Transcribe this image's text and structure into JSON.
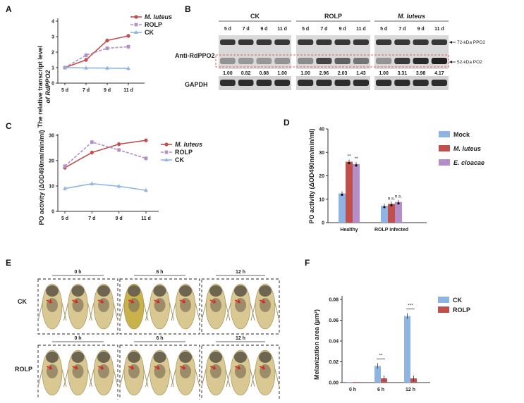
{
  "panels": {
    "A": {
      "letter": "A",
      "ylabel_line1": "The relative transcript level",
      "ylabel_line2": "of RdPPO2",
      "legend": [
        "M. luteus",
        "ROLP",
        "CK"
      ],
      "chart_data": {
        "type": "line",
        "categories": [
          "5 d",
          "7 d",
          "9 d",
          "11 d"
        ],
        "ylim": [
          0,
          4
        ],
        "yticks": [
          "0",
          "1",
          "2",
          "3",
          "4"
        ],
        "series": [
          {
            "name": "M. luteus",
            "values": [
              1.0,
              1.5,
              2.75,
              3.05
            ],
            "color": "#c0504d"
          },
          {
            "name": "ROLP",
            "values": [
              1.0,
              1.8,
              2.25,
              2.35
            ],
            "color": "#b48ec6"
          },
          {
            "name": "CK",
            "values": [
              1.0,
              0.98,
              0.97,
              0.95
            ],
            "color": "#8db4e2"
          }
        ]
      }
    },
    "B": {
      "letter": "B",
      "groups": [
        "CK",
        "ROLP",
        "M. luteus"
      ],
      "days": [
        "5 d",
        "7 d",
        "9 d",
        "11 d"
      ],
      "row_label_antibody": "Anti-RdPPO2",
      "row_label_loading": "GAPDH",
      "band_upper": "72-kDa PPO2",
      "band_lower": "52-kDa PO2",
      "values": {
        "CK": [
          "1.00",
          "0.82",
          "0.88",
          "1.00"
        ],
        "ROLP": [
          "1.00",
          "2.96",
          "2.03",
          "1.43"
        ],
        "M. luteus": [
          "1.00",
          "3.31",
          "3.98",
          "4.17"
        ]
      }
    },
    "C": {
      "letter": "C",
      "ylabel": "PO activity (ΔOD490nm/min/ml)",
      "legend": [
        "M. luteus",
        "ROLP",
        "CK"
      ],
      "chart_data": {
        "type": "line",
        "categories": [
          "5 d",
          "7 d",
          "9 d",
          "11 d"
        ],
        "ylim": [
          0,
          30
        ],
        "yticks": [
          "0",
          "10",
          "20",
          "30"
        ],
        "series": [
          {
            "name": "M. luteus",
            "values": [
              17.2,
              23.2,
              26.5,
              28.0
            ],
            "color": "#c0504d"
          },
          {
            "name": "ROLP",
            "values": [
              17.8,
              27.3,
              24.2,
              20.9
            ],
            "color": "#b48ec6"
          },
          {
            "name": "CK",
            "values": [
              9.0,
              10.9,
              9.9,
              8.3
            ],
            "color": "#8db4e2"
          }
        ]
      }
    },
    "D": {
      "letter": "D",
      "ylabel": "PO activity (ΔOD490nm/min/ml)",
      "legend": [
        "Mock",
        "M. luteus",
        "E. cloacae"
      ],
      "chart_data": {
        "type": "bar",
        "categories": [
          "Healthy",
          "ROLP infected"
        ],
        "ylim": [
          0,
          40
        ],
        "yticks": [
          "0",
          "10",
          "20",
          "30",
          "40"
        ],
        "series": [
          {
            "name": "Mock",
            "values": [
              12.5,
              7.2
            ],
            "color": "#8db4e2"
          },
          {
            "name": "M. luteus",
            "values": [
              26.0,
              8.0
            ],
            "color": "#c0504d"
          },
          {
            "name": "E. cloacae",
            "values": [
              25.0,
              8.8
            ],
            "color": "#b48ec6"
          }
        ],
        "annotations": [
          [
            "**",
            "**"
          ],
          [
            "n.s.",
            "n.s."
          ]
        ]
      }
    },
    "E": {
      "letter": "E",
      "row_labels": [
        "CK",
        "ROLP"
      ],
      "time_labels": [
        "0 h",
        "6 h",
        "12 h"
      ]
    },
    "F": {
      "letter": "F",
      "ylabel": "Melanization area (μm²)",
      "legend": [
        "CK",
        "ROLP"
      ],
      "chart_data": {
        "type": "bar",
        "categories": [
          "0 h",
          "6 h",
          "12 h"
        ],
        "ylim": [
          0,
          0.08
        ],
        "yticks": [
          "0.00",
          "0.02",
          "0.04",
          "0.06",
          "0.08"
        ],
        "series": [
          {
            "name": "CK",
            "values": [
              0.0,
              0.016,
              0.064
            ],
            "color": "#8db4e2"
          },
          {
            "name": "ROLP",
            "values": [
              0.0,
              0.004,
              0.004
            ],
            "color": "#c0504d"
          }
        ],
        "annotations": [
          "",
          "**",
          "***"
        ]
      }
    }
  }
}
